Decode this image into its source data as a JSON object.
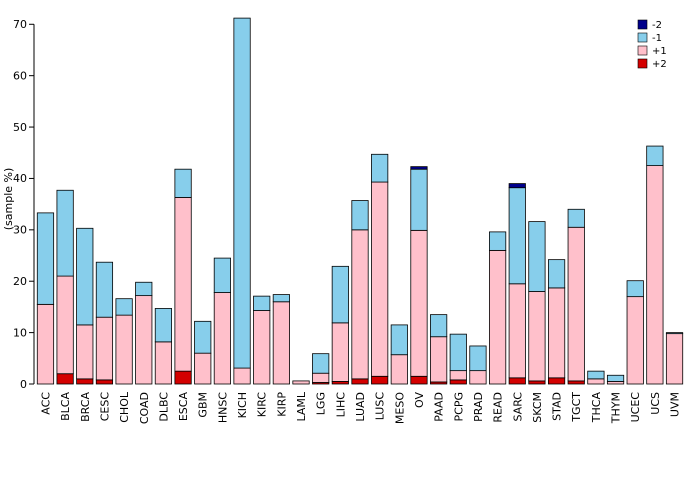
{
  "chart_data": {
    "type": "bar",
    "stacked": true,
    "title": "",
    "xlabel": "",
    "ylabel": "(sample %)",
    "ylim": [
      0,
      72
    ],
    "yticks": [
      0,
      10,
      20,
      30,
      40,
      50,
      60,
      70
    ],
    "grid": false,
    "legend_position": "top-right",
    "legend_order": [
      "-2",
      "-1",
      "+1",
      "+2"
    ],
    "categories": [
      "ACC",
      "BLCA",
      "BRCA",
      "CESC",
      "CHOL",
      "COAD",
      "DLBC",
      "ESCA",
      "GBM",
      "HNSC",
      "KICH",
      "KIRC",
      "KIRP",
      "LAML",
      "LGG",
      "LIHC",
      "LUAD",
      "LUSC",
      "MESO",
      "OV",
      "PAAD",
      "PCPG",
      "PRAD",
      "READ",
      "SARC",
      "SKCM",
      "STAD",
      "TGCT",
      "THCA",
      "THYM",
      "UCEC",
      "UCS",
      "UVM"
    ],
    "series": [
      {
        "name": "+2",
        "color": "#d40000",
        "values": [
          0,
          2.0,
          1.0,
          0.8,
          0,
          0,
          0,
          2.5,
          0,
          0,
          0,
          0,
          0,
          0,
          0.3,
          0.5,
          1.0,
          1.5,
          0,
          1.5,
          0.4,
          0.8,
          0,
          0,
          1.2,
          0.6,
          1.2,
          0.6,
          0,
          0,
          0,
          0,
          0
        ]
      },
      {
        "name": "+1",
        "color": "#ffc0cb",
        "values": [
          15.5,
          19.0,
          10.5,
          12.2,
          13.4,
          17.2,
          8.2,
          33.8,
          6.0,
          17.8,
          3.1,
          14.3,
          16.0,
          0.6,
          1.8,
          11.4,
          29.0,
          37.8,
          5.7,
          28.4,
          8.8,
          1.8,
          2.6,
          26.0,
          18.3,
          17.4,
          17.5,
          29.9,
          1.0,
          0.5,
          17.0,
          42.5,
          9.8
        ]
      },
      {
        "name": "-1",
        "color": "#87ceeb",
        "values": [
          17.8,
          16.7,
          18.8,
          10.7,
          3.2,
          2.6,
          6.5,
          5.5,
          6.2,
          6.7,
          68.1,
          2.8,
          1.4,
          0,
          3.8,
          11.0,
          5.7,
          5.4,
          5.8,
          11.9,
          4.3,
          7.1,
          4.8,
          3.6,
          18.7,
          13.6,
          5.5,
          3.5,
          1.5,
          1.2,
          3.1,
          3.8,
          0.2
        ]
      },
      {
        "name": "-2",
        "color": "#00008b",
        "values": [
          0,
          0,
          0,
          0,
          0,
          0,
          0,
          0,
          0,
          0,
          0,
          0,
          0,
          0,
          0,
          0,
          0,
          0,
          0,
          0.5,
          0,
          0,
          0,
          0,
          0.8,
          0,
          0,
          0,
          0,
          0,
          0,
          0,
          0
        ]
      }
    ]
  }
}
